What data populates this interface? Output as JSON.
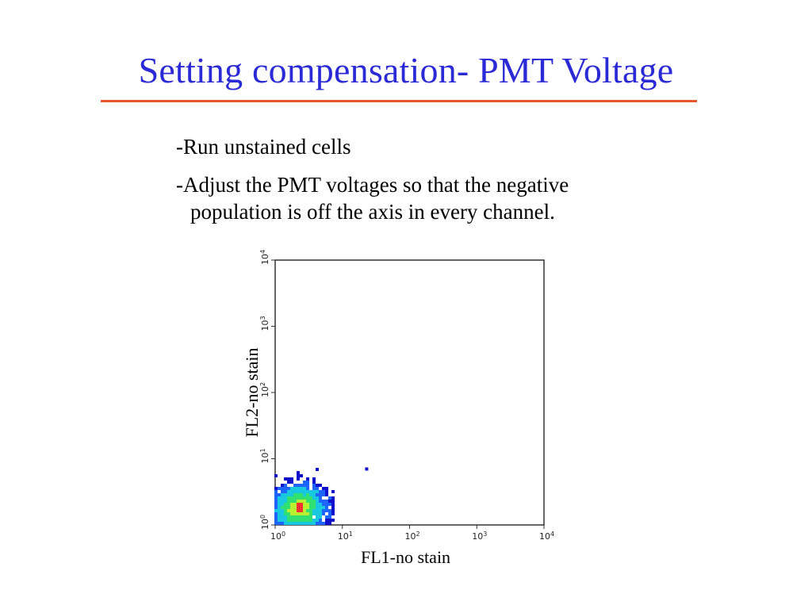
{
  "slide": {
    "title": "Setting compensation- PMT Voltage",
    "bullets": [
      {
        "line1": "-Run unstained cells",
        "line2": ""
      },
      {
        "line1": "-Adjust the PMT voltages so that the negative",
        "line2": "population is off the axis in every channel."
      }
    ],
    "title_color": "#2a2ad6",
    "rule_color": "#e8572e"
  },
  "chart_data": {
    "type": "heatmap",
    "title": "",
    "xlabel": "FL1-no stain",
    "ylabel": "FL2-no stain",
    "xscale": "log",
    "yscale": "log",
    "xlim": [
      1,
      10000
    ],
    "ylim": [
      1,
      10000
    ],
    "x_ticks": [
      {
        "base": "10",
        "exp": "0"
      },
      {
        "base": "10",
        "exp": "1"
      },
      {
        "base": "10",
        "exp": "2"
      },
      {
        "base": "10",
        "exp": "3"
      },
      {
        "base": "10",
        "exp": "4"
      }
    ],
    "y_ticks": [
      {
        "base": "10",
        "exp": "0"
      },
      {
        "base": "10",
        "exp": "1"
      },
      {
        "base": "10",
        "exp": "2"
      },
      {
        "base": "10",
        "exp": "3"
      },
      {
        "base": "10",
        "exp": "4"
      }
    ],
    "population": {
      "center": [
        2.3,
        1.8
      ],
      "x_range": [
        1,
        8
      ],
      "y_range": [
        1,
        12
      ],
      "outlier": [
        23,
        7
      ]
    },
    "density_colors": [
      "#1010cc",
      "#1e64ff",
      "#18c8e0",
      "#30e070",
      "#b8f030",
      "#ff3030"
    ]
  }
}
